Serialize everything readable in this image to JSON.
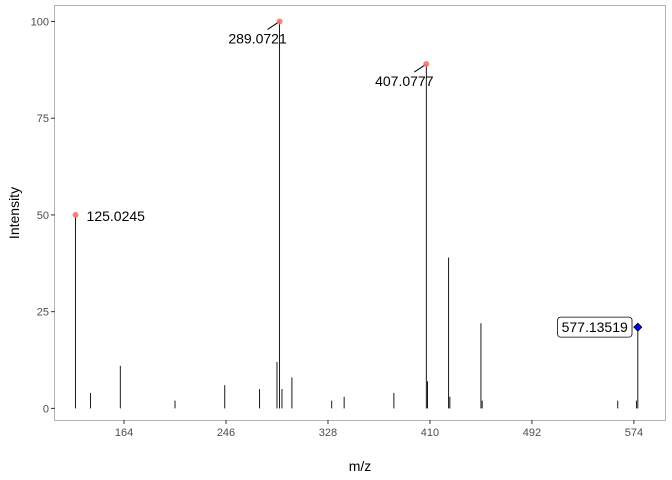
{
  "chart_data": {
    "type": "spectrum",
    "xlabel": "m/z",
    "ylabel": "Intensity",
    "x_ticks": [
      164,
      246,
      328,
      410,
      492,
      574
    ],
    "y_ticks": [
      0,
      25,
      50,
      75,
      100
    ],
    "xlim": [
      108.5,
      599
    ],
    "ylim": [
      -3,
      104
    ],
    "grid": false,
    "peaks": [
      {
        "mz": 125.0245,
        "intensity": 50
      },
      {
        "mz": 137,
        "intensity": 4
      },
      {
        "mz": 161,
        "intensity": 11
      },
      {
        "mz": 205,
        "intensity": 2
      },
      {
        "mz": 245,
        "intensity": 6
      },
      {
        "mz": 273,
        "intensity": 5
      },
      {
        "mz": 287,
        "intensity": 12
      },
      {
        "mz": 289.0721,
        "intensity": 100
      },
      {
        "mz": 291,
        "intensity": 5
      },
      {
        "mz": 299,
        "intensity": 8
      },
      {
        "mz": 331,
        "intensity": 2
      },
      {
        "mz": 341,
        "intensity": 3
      },
      {
        "mz": 381,
        "intensity": 4
      },
      {
        "mz": 407.0777,
        "intensity": 89
      },
      {
        "mz": 408,
        "intensity": 7
      },
      {
        "mz": 425,
        "intensity": 39
      },
      {
        "mz": 426,
        "intensity": 3
      },
      {
        "mz": 451,
        "intensity": 22
      },
      {
        "mz": 452,
        "intensity": 2
      },
      {
        "mz": 561,
        "intensity": 2
      },
      {
        "mz": 576,
        "intensity": 2
      },
      {
        "mz": 577.13519,
        "intensity": 21
      }
    ],
    "highlighted": [
      {
        "label": "125.0245",
        "mz": 125.0245,
        "intensity": 50,
        "color": "#f8766d"
      },
      {
        "label": "289.0721",
        "mz": 289.0721,
        "intensity": 100,
        "color": "#f8766d"
      },
      {
        "label": "407.0777",
        "mz": 407.0777,
        "intensity": 89,
        "color": "#f8766d"
      }
    ],
    "precursor": {
      "label": "577.13519",
      "mz": 577.13519,
      "intensity": 21,
      "color": "#0000ff"
    }
  }
}
